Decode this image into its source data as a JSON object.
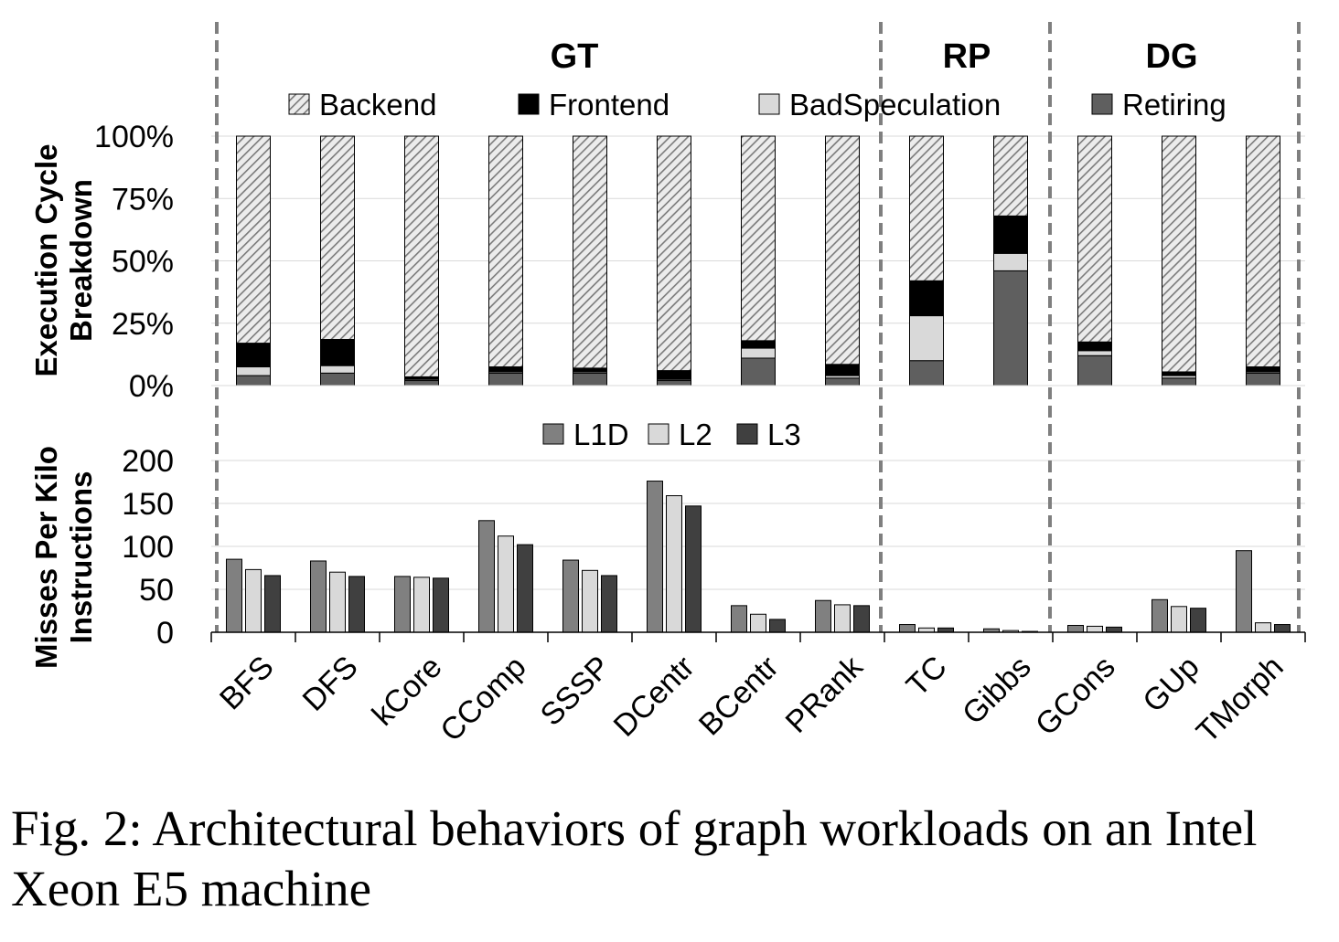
{
  "chart_data": [
    {
      "type": "bar",
      "stacked": true,
      "ylabel": "Execution Cycle\nBreakdown",
      "yticks": [
        "0%",
        "25%",
        "50%",
        "75%",
        "100%"
      ],
      "ylim": [
        0,
        100
      ],
      "grid": true,
      "legend_position": "top",
      "groups": [
        {
          "name": "GT",
          "categories": [
            "BFS",
            "DFS",
            "kCore",
            "CComp",
            "SSSP",
            "DCentr",
            "BCentr",
            "PRank"
          ]
        },
        {
          "name": "RP",
          "categories": [
            "TC",
            "Gibbs"
          ]
        },
        {
          "name": "DG",
          "categories": [
            "GCons",
            "GUp",
            "TMorph"
          ]
        }
      ],
      "categories": [
        "BFS",
        "DFS",
        "kCore",
        "CComp",
        "SSSP",
        "DCentr",
        "BCentr",
        "PRank",
        "TC",
        "Gibbs",
        "GCons",
        "GUp",
        "TMorph"
      ],
      "series": [
        {
          "name": "Retiring",
          "color": "#5f5f5f",
          "values": [
            4,
            5,
            2,
            5,
            5,
            2,
            11,
            3,
            10,
            46,
            12,
            3,
            5
          ]
        },
        {
          "name": "BadSpeculation",
          "color": "#d9d9d9",
          "values": [
            3.5,
            3,
            0.5,
            0.5,
            0.5,
            0.5,
            4,
            1,
            18,
            7,
            2,
            1,
            0.5
          ]
        },
        {
          "name": "Frontend",
          "color": "#000000",
          "values": [
            9.5,
            10.5,
            1,
            2,
            1.5,
            3.5,
            3,
            4.5,
            14,
            15,
            3.5,
            1.5,
            2
          ]
        },
        {
          "name": "Backend",
          "color": "#b8b8b8",
          "pattern": "hatched",
          "values": [
            83,
            81.5,
            96.5,
            92.5,
            93,
            94,
            82,
            91.5,
            58,
            32,
            82.5,
            94.5,
            92.5
          ]
        }
      ],
      "legend_order": [
        "Backend",
        "Frontend",
        "BadSpeculation",
        "Retiring"
      ]
    },
    {
      "type": "bar",
      "ylabel": "Misses Per Kilo\nInstructions",
      "yticks": [
        "0",
        "50",
        "100",
        "150",
        "200"
      ],
      "ylim": [
        0,
        200
      ],
      "grid": true,
      "legend_position": "top",
      "categories": [
        "BFS",
        "DFS",
        "kCore",
        "CComp",
        "SSSP",
        "DCentr",
        "BCentr",
        "PRank",
        "TC",
        "Gibbs",
        "GCons",
        "GUp",
        "TMorph"
      ],
      "series": [
        {
          "name": "L1D",
          "color": "#808080",
          "values": [
            85,
            83,
            65,
            130,
            84,
            176,
            31,
            37,
            9,
            4,
            8,
            38,
            95
          ]
        },
        {
          "name": "L2",
          "color": "#d9d9d9",
          "values": [
            73,
            70,
            64,
            112,
            72,
            159,
            21,
            32,
            5,
            2,
            7,
            30,
            11
          ]
        },
        {
          "name": "L3",
          "color": "#404040",
          "values": [
            66,
            65,
            63,
            102,
            66,
            147,
            15,
            31,
            5,
            1,
            6,
            28,
            9
          ]
        }
      ]
    }
  ],
  "caption": {
    "line1": "Fig. 2: Architectural behaviors of graph workloads on an Intel",
    "line2": "Xeon E5 machine"
  }
}
